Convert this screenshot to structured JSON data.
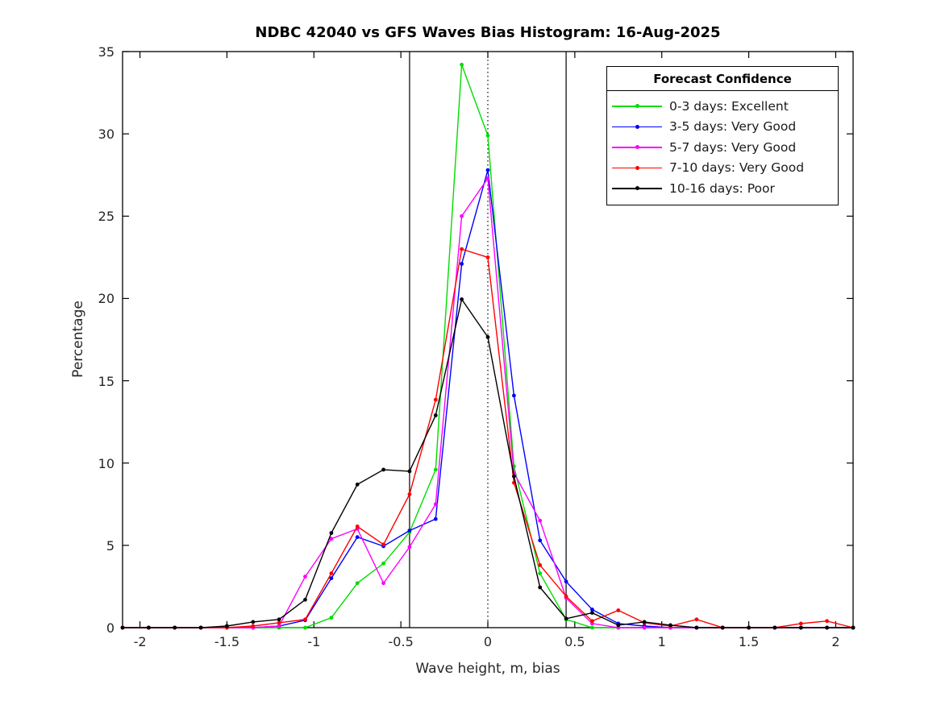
{
  "title": "NDBC 42040 vs GFS Waves Bias Histogram: 16-Aug-2025",
  "xlabel": "Wave height, m, bias",
  "ylabel": "Percentage",
  "legend": {
    "title": "Forecast Confidence",
    "entries": [
      {
        "label": "0-3 days: Excellent",
        "color": "#00dd00"
      },
      {
        "label": "3-5 days: Very Good",
        "color": "#0000ff"
      },
      {
        "label": "5-7 days: Very Good",
        "color": "#ff00ff"
      },
      {
        "label": "7-10 days: Very Good",
        "color": "#ff0000"
      },
      {
        "label": "10-16 days: Poor",
        "color": "#000000"
      }
    ]
  },
  "chart_data": {
    "type": "line",
    "title": "NDBC 42040 vs GFS Waves Bias Histogram: 16-Aug-2025",
    "xlabel": "Wave height, m, bias",
    "ylabel": "Percentage",
    "xlim": [
      -2.1,
      2.1
    ],
    "ylim": [
      0,
      35
    ],
    "grid": false,
    "legend_position": "upper right",
    "x_ticks": [
      -2,
      -1.5,
      -1,
      -0.5,
      0,
      0.5,
      1,
      1.5,
      2
    ],
    "x_tick_labels": [
      "-2",
      "-1.5",
      "-1",
      "-0.5",
      "0",
      "0.5",
      "1",
      "1.5",
      "2"
    ],
    "y_ticks": [
      0,
      5,
      10,
      15,
      20,
      25,
      30,
      35
    ],
    "y_tick_labels": [
      "0",
      "5",
      "10",
      "15",
      "20",
      "25",
      "30",
      "35"
    ],
    "reference_lines": [
      {
        "x": -0.45,
        "style": "solid"
      },
      {
        "x": 0,
        "style": "dotted"
      },
      {
        "x": 0.45,
        "style": "solid"
      }
    ],
    "x": [
      -2.1,
      -1.95,
      -1.8,
      -1.65,
      -1.5,
      -1.35,
      -1.2,
      -1.05,
      -0.9,
      -0.75,
      -0.6,
      -0.45,
      -0.3,
      -0.15,
      0,
      0.15,
      0.3,
      0.45,
      0.6,
      0.75,
      0.9,
      1.05,
      1.2,
      1.35,
      1.5,
      1.65,
      1.8,
      1.95,
      2.1
    ],
    "series": [
      {
        "name": "0-3 days: Excellent",
        "color": "#00dd00",
        "values": [
          0,
          0,
          0,
          0,
          0,
          0,
          0,
          0,
          0.6,
          2.7,
          3.9,
          5.8,
          9.6,
          34.2,
          29.9,
          9.8,
          3.3,
          0.5,
          0,
          0,
          0,
          0,
          0,
          0,
          0,
          0,
          0,
          0,
          0
        ]
      },
      {
        "name": "3-5 days: Very Good",
        "color": "#0000ff",
        "values": [
          0,
          0,
          0,
          0,
          0,
          0,
          0.1,
          0.45,
          3.0,
          5.5,
          4.95,
          5.9,
          6.6,
          22.1,
          27.8,
          14.1,
          5.3,
          2.8,
          1.1,
          0.25,
          0.1,
          0,
          0,
          0,
          0,
          0,
          0,
          0,
          0
        ]
      },
      {
        "name": "5-7 days: Very Good",
        "color": "#ff00ff",
        "values": [
          0,
          0,
          0,
          0,
          0,
          0,
          0.1,
          3.1,
          5.4,
          6.0,
          2.7,
          4.9,
          7.5,
          25.0,
          27.3,
          9.4,
          6.5,
          1.8,
          0.25,
          0,
          0,
          0,
          0,
          0,
          0,
          0,
          0,
          0,
          0
        ]
      },
      {
        "name": "7-10 days: Very Good",
        "color": "#ff0000",
        "values": [
          0,
          0,
          0,
          0,
          0,
          0.1,
          0.3,
          0.5,
          3.3,
          6.15,
          5.05,
          8.1,
          13.85,
          23.0,
          22.5,
          8.8,
          3.8,
          1.9,
          0.4,
          1.05,
          0.3,
          0.1,
          0.5,
          0,
          0,
          0,
          0.25,
          0.4,
          0
        ]
      },
      {
        "name": "10-16 days: Poor",
        "color": "#000000",
        "values": [
          0,
          0,
          0,
          0,
          0.1,
          0.35,
          0.5,
          1.7,
          5.75,
          8.7,
          9.6,
          9.5,
          12.9,
          19.95,
          17.65,
          9.2,
          2.45,
          0.55,
          0.9,
          0.15,
          0.35,
          0.15,
          0,
          0,
          0,
          0,
          0,
          0,
          0
        ]
      }
    ]
  }
}
